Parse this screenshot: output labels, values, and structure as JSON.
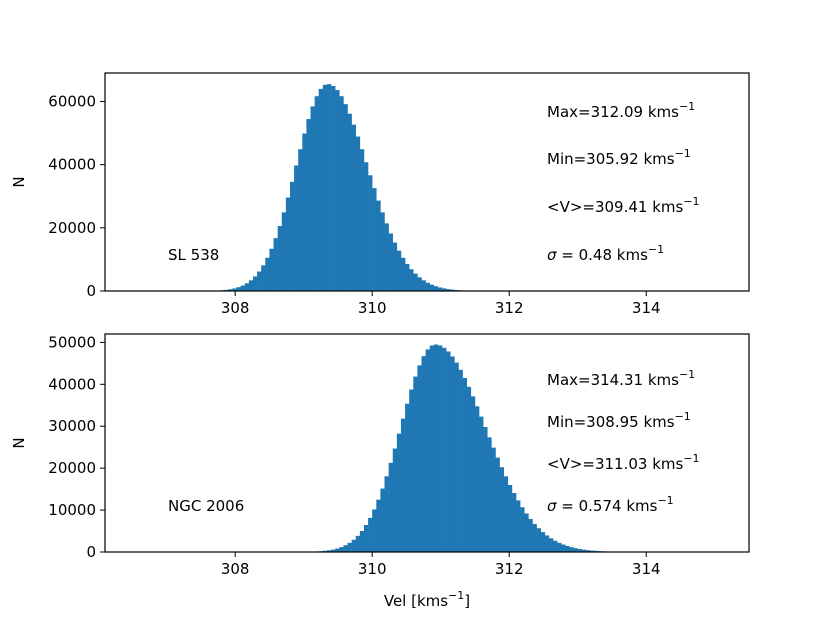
{
  "chart_data": [
    {
      "type": "bar",
      "name": "top",
      "label": "SL 538",
      "xlabel": "",
      "ylabel": "N",
      "xlim": [
        306.1,
        315.5
      ],
      "ylim": [
        0,
        69000
      ],
      "xticks": [
        "308",
        "310",
        "312",
        "314"
      ],
      "yticks": [
        "0",
        "20000",
        "40000",
        "60000"
      ],
      "bar_color": "#1f77b4",
      "bin_width": 0.06,
      "mean": 309.35,
      "sigma": 0.46,
      "peak": 65500,
      "skew": 0.25,
      "range": [
        307.6,
        311.8
      ],
      "annotations": {
        "max": {
          "text": "Max=312.09 kms",
          "sup": "−1"
        },
        "min": {
          "text": "Min=305.92 kms",
          "sup": "−1"
        },
        "mean": {
          "text": "<V>=309.41 kms",
          "sup": "−1"
        },
        "sigma": {
          "symbol": "σ",
          "text": " = 0.48 kms",
          "sup": "−1"
        }
      }
    },
    {
      "type": "bar",
      "name": "bottom",
      "label": "NGC 2006",
      "xlabel": "Vel [kms",
      "xlabel_sup": "−1",
      "xlabel_end": "]",
      "ylabel": "N",
      "xlim": [
        306.1,
        315.5
      ],
      "ylim": [
        0,
        52000
      ],
      "xticks": [
        "308",
        "310",
        "312",
        "314"
      ],
      "yticks": [
        "0",
        "10000",
        "20000",
        "30000",
        "40000",
        "50000"
      ],
      "bar_color": "#1f77b4",
      "bin_width": 0.06,
      "mean": 310.92,
      "sigma": 0.5,
      "peak": 49500,
      "skew": 0.45,
      "range": [
        309.1,
        313.8
      ],
      "annotations": {
        "max": {
          "text": "Max=314.31 kms",
          "sup": "−1"
        },
        "min": {
          "text": "Min=308.95 kms",
          "sup": "−1"
        },
        "mean": {
          "text": "<V>=311.03 kms",
          "sup": "−1"
        },
        "sigma": {
          "symbol": "σ",
          "text": " = 0.574 kms",
          "sup": "−1"
        }
      }
    }
  ]
}
